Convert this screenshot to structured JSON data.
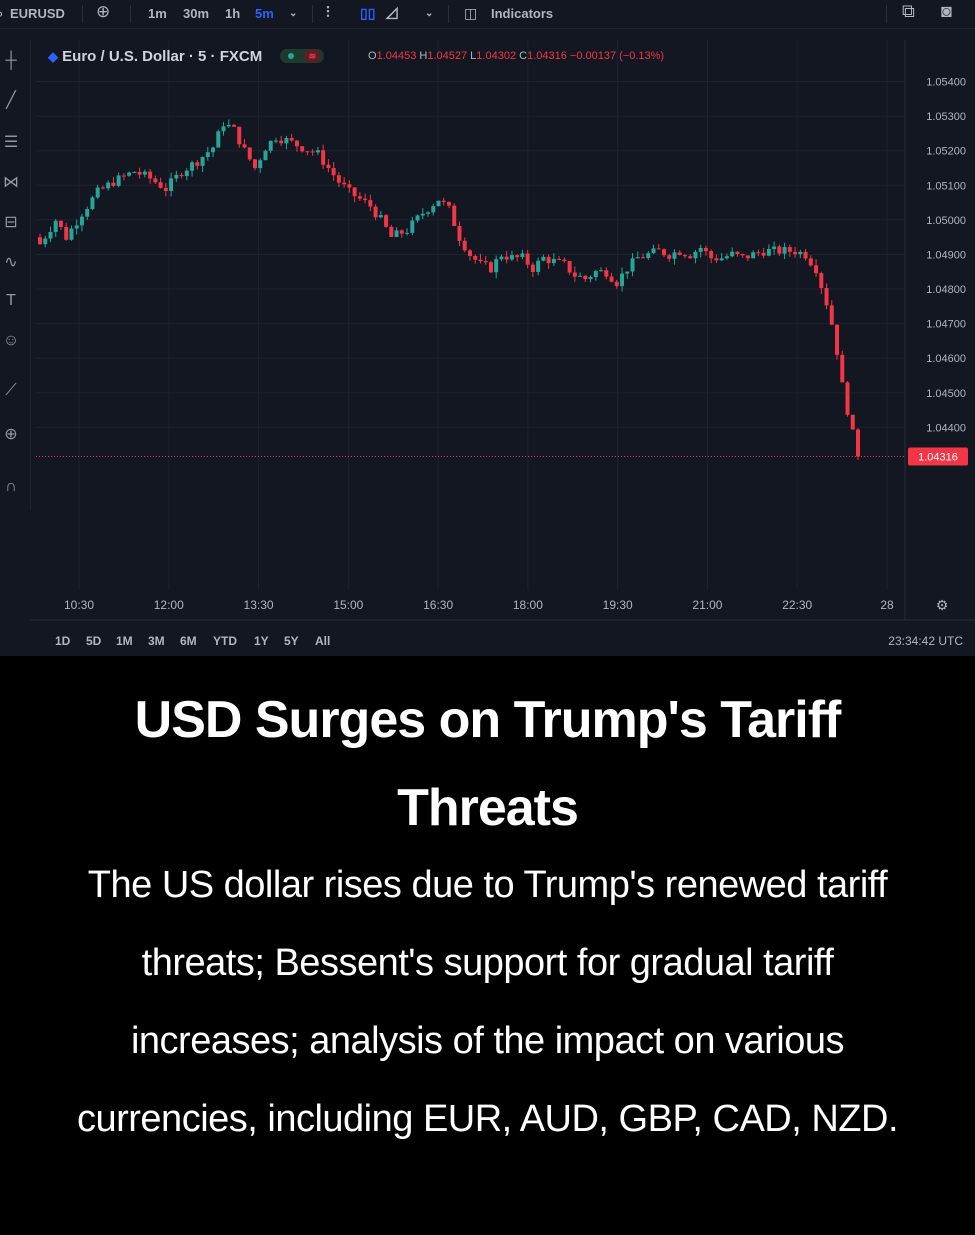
{
  "toolbar": {
    "symbol": "EURUSD",
    "intervals": [
      "1m",
      "30m",
      "1h",
      "5m"
    ],
    "active_interval": "5m",
    "indicators_label": "Indicators",
    "add_icon": "plus-circle-icon",
    "compare_icon": "bar-style-icon",
    "candle_icon": "candle-icon",
    "area_icon": "area-chart-icon",
    "chevron_icon": "chevron-down-icon",
    "share_icon": "share-icon",
    "camera_icon": "camera-icon"
  },
  "left_tools": [
    "crosshair-icon",
    "trendline-icon",
    "fib-icon",
    "pattern-icon",
    "forecast-icon",
    "brush-icon",
    "text-icon",
    "emoji-icon",
    "ruler-icon",
    "zoom-icon",
    "magnet-icon"
  ],
  "legend": {
    "title": "Euro / U.S. Dollar · 5 · FXCM",
    "o_label": "O",
    "o": "1.04453",
    "h_label": "H",
    "h": "1.04527",
    "l_label": "L",
    "l": "1.04302",
    "c_label": "C",
    "c": "1.04316",
    "change": "−0.00137 (−0.13%)"
  },
  "colors": {
    "up": "#26a69a",
    "down": "#f23645",
    "bg": "#131722",
    "grid": "#1e222d",
    "text": "#b2b5be"
  },
  "chart_data": {
    "type": "candlestick",
    "title": "Euro / U.S. Dollar · 5 · FXCM",
    "x_ticks": [
      "10:30",
      "12:00",
      "13:30",
      "15:00",
      "16:30",
      "18:00",
      "19:30",
      "21:00",
      "22:30",
      "28"
    ],
    "y_ticks": [
      1.054,
      1.053,
      1.052,
      1.051,
      1.05,
      1.049,
      1.048,
      1.047,
      1.046,
      1.045,
      1.044
    ],
    "ylim": [
      1.0393,
      1.0552
    ],
    "last_price": 1.04316,
    "last_price_label": "1.04316",
    "close_path": [
      [
        0,
        1.0493
      ],
      [
        3,
        1.05
      ],
      [
        5,
        1.0495
      ],
      [
        8,
        1.0502
      ],
      [
        11,
        1.0508
      ],
      [
        14,
        1.0511
      ],
      [
        18,
        1.0514
      ],
      [
        21,
        1.0512
      ],
      [
        24,
        1.0509
      ],
      [
        27,
        1.0514
      ],
      [
        30,
        1.0517
      ],
      [
        33,
        1.0521
      ],
      [
        35,
        1.0528
      ],
      [
        37,
        1.0526
      ],
      [
        39,
        1.052
      ],
      [
        41,
        1.0515
      ],
      [
        43,
        1.0521
      ],
      [
        45,
        1.0524
      ],
      [
        47,
        1.0523
      ],
      [
        50,
        1.0521
      ],
      [
        53,
        1.0519
      ],
      [
        55,
        1.0515
      ],
      [
        57,
        1.0511
      ],
      [
        59,
        1.0508
      ],
      [
        61,
        1.0506
      ],
      [
        63,
        1.0504
      ],
      [
        65,
        1.05
      ],
      [
        67,
        1.0495
      ],
      [
        70,
        1.0497
      ],
      [
        73,
        1.0502
      ],
      [
        76,
        1.0506
      ],
      [
        78,
        1.0503
      ],
      [
        80,
        1.0495
      ],
      [
        82,
        1.049
      ],
      [
        84,
        1.0487
      ],
      [
        86,
        1.0486
      ],
      [
        88,
        1.049
      ],
      [
        90,
        1.0489
      ],
      [
        92,
        1.0489
      ],
      [
        94,
        1.0486
      ],
      [
        96,
        1.0489
      ],
      [
        98,
        1.0488
      ],
      [
        100,
        1.0487
      ],
      [
        102,
        1.0484
      ],
      [
        104,
        1.0483
      ],
      [
        106,
        1.0485
      ],
      [
        108,
        1.0485
      ],
      [
        110,
        1.0482
      ],
      [
        112,
        1.0486
      ],
      [
        114,
        1.0489
      ],
      [
        116,
        1.049
      ],
      [
        118,
        1.0491
      ],
      [
        120,
        1.049
      ],
      [
        122,
        1.0491
      ],
      [
        124,
        1.049
      ],
      [
        126,
        1.0492
      ],
      [
        128,
        1.0489
      ],
      [
        130,
        1.0489
      ],
      [
        132,
        1.049
      ],
      [
        134,
        1.0489
      ],
      [
        136,
        1.049
      ],
      [
        138,
        1.0491
      ],
      [
        140,
        1.0491
      ],
      [
        142,
        1.0491
      ],
      [
        144,
        1.0491
      ],
      [
        146,
        1.049
      ],
      [
        148,
        1.0486
      ],
      [
        150,
        1.0476
      ],
      [
        151,
        1.047
      ],
      [
        152,
        1.0462
      ],
      [
        153,
        1.0452
      ],
      [
        154,
        1.0445
      ],
      [
        155,
        1.0438
      ],
      [
        156,
        1.04316
      ]
    ]
  },
  "range_bar": {
    "ranges": [
      "1D",
      "5D",
      "1M",
      "3M",
      "6M",
      "YTD",
      "1Y",
      "5Y",
      "All"
    ],
    "clock": "23:34:42 UTC",
    "settings_icon": "gear-icon"
  },
  "article": {
    "headline": "USD Surges on Trump's Tariff Threats",
    "summary": "The US dollar rises due to Trump's renewed tariff threats; Bessent's support for gradual tariff increases; analysis of the impact on various currencies, including EUR, AUD, GBP, CAD, NZD."
  }
}
